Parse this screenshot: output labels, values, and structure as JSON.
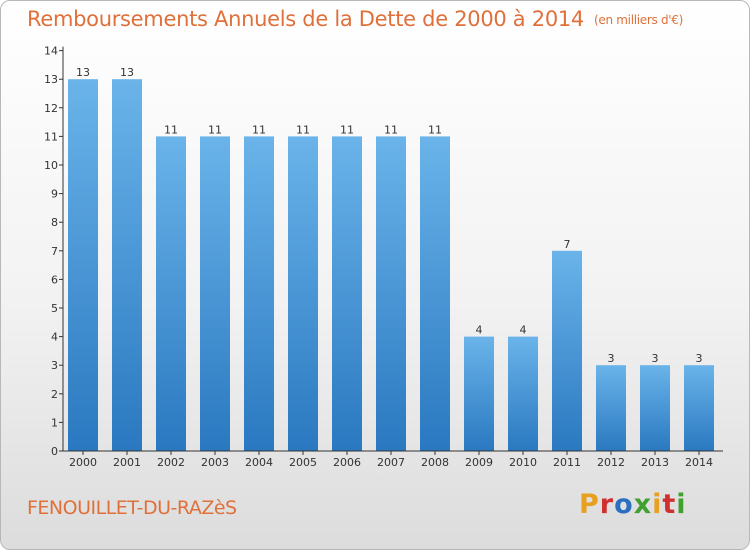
{
  "title": "Remboursements Annuels de la Dette de 2000 à 2014",
  "title_unit": "(en milliers d'€)",
  "commune": "FENOUILLET-DU-RAZèS",
  "logo_text": "Proxiti",
  "colors": {
    "title": "#e0703a",
    "bar_light": "#6ab4ea",
    "bar_dark": "#2a78c0",
    "axis": "#333333",
    "logo": [
      "#e8a020",
      "#d03030",
      "#2a6fc0",
      "#40a030",
      "#e8a020",
      "#d03030",
      "#40a030"
    ]
  },
  "chart_data": {
    "type": "bar",
    "title": "Remboursements Annuels de la Dette de 2000 à 2014",
    "xlabel": "",
    "ylabel": "",
    "categories": [
      "2000",
      "2001",
      "2002",
      "2003",
      "2004",
      "2005",
      "2006",
      "2007",
      "2008",
      "2009",
      "2010",
      "2011",
      "2012",
      "2013",
      "2014"
    ],
    "values": [
      13,
      13,
      11,
      11,
      11,
      11,
      11,
      11,
      11,
      4,
      4,
      7,
      3,
      3,
      3
    ],
    "data_labels": [
      "13",
      "13",
      "11",
      "11",
      "11",
      "11",
      "11",
      "11",
      "11",
      "4",
      "4",
      "7",
      "3",
      "3",
      "3"
    ],
    "yticks": [
      0,
      1,
      2,
      3,
      4,
      5,
      6,
      7,
      8,
      9,
      10,
      11,
      12,
      13,
      14
    ],
    "ylim": [
      0,
      14
    ],
    "grid": false,
    "legend": "none"
  }
}
